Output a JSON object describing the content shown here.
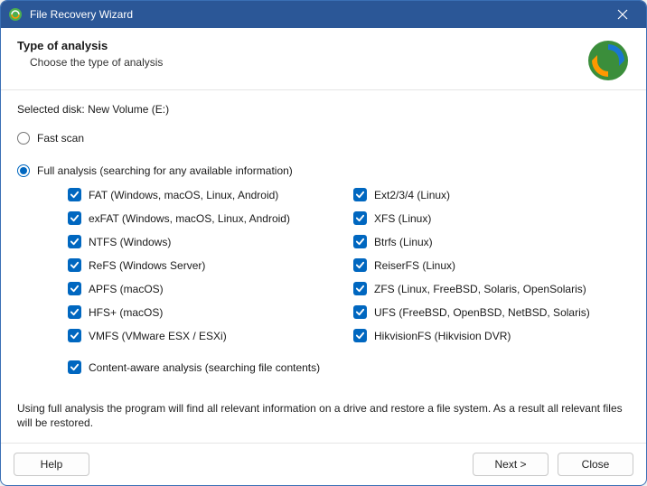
{
  "titlebar": {
    "title": "File Recovery Wizard"
  },
  "header": {
    "title": "Type of analysis",
    "subtitle": "Choose the type of analysis"
  },
  "selected_disk_label": "Selected disk:",
  "selected_disk_value": "New Volume (E:)",
  "scan": {
    "fast_label": "Fast scan",
    "full_label": "Full analysis (searching for any available information)",
    "selected": "full"
  },
  "filesystems_left": [
    {
      "label": "FAT (Windows, macOS, Linux, Android)",
      "checked": true
    },
    {
      "label": "exFAT (Windows, macOS, Linux, Android)",
      "checked": true
    },
    {
      "label": "NTFS (Windows)",
      "checked": true
    },
    {
      "label": "ReFS (Windows Server)",
      "checked": true
    },
    {
      "label": "APFS (macOS)",
      "checked": true
    },
    {
      "label": "HFS+ (macOS)",
      "checked": true
    },
    {
      "label": "VMFS (VMware ESX / ESXi)",
      "checked": true
    }
  ],
  "filesystems_right": [
    {
      "label": "Ext2/3/4 (Linux)",
      "checked": true
    },
    {
      "label": "XFS (Linux)",
      "checked": true
    },
    {
      "label": "Btrfs (Linux)",
      "checked": true
    },
    {
      "label": "ReiserFS (Linux)",
      "checked": true
    },
    {
      "label": "ZFS (Linux, FreeBSD, Solaris, OpenSolaris)",
      "checked": true
    },
    {
      "label": "UFS (FreeBSD, OpenBSD, NetBSD, Solaris)",
      "checked": true
    },
    {
      "label": "HikvisionFS (Hikvision DVR)",
      "checked": true
    }
  ],
  "content_aware": {
    "label": "Content-aware analysis (searching file contents)",
    "checked": true
  },
  "description": "Using full analysis the program will find all relevant information on a drive and restore a file system. As a result all relevant files will be restored.",
  "buttons": {
    "help": "Help",
    "next": "Next >",
    "close": "Close"
  },
  "colors": {
    "titlebar_bg": "#2b5797",
    "accent": "#0067c0",
    "border": "#e5e5e5",
    "button_border": "#c8c8c8",
    "text": "#1a1a1a"
  }
}
